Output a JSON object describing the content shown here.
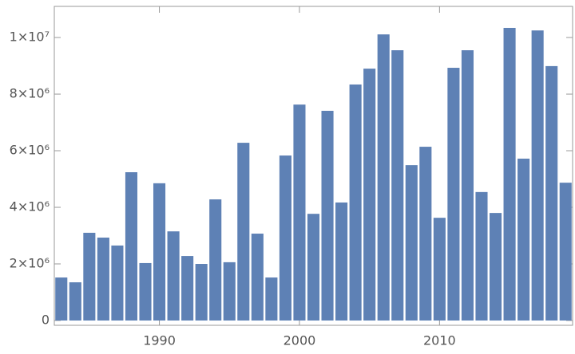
{
  "chart_data": {
    "type": "bar",
    "color": "#5e81b5",
    "x": [
      1983,
      1984,
      1985,
      1986,
      1987,
      1988,
      1989,
      1990,
      1991,
      1992,
      1993,
      1994,
      1995,
      1996,
      1997,
      1998,
      1999,
      2000,
      2001,
      2002,
      2003,
      2004,
      2005,
      2006,
      2007,
      2008,
      2009,
      2010,
      2011,
      2012,
      2013,
      2014,
      2015,
      2016,
      2017,
      2018,
      2019
    ],
    "values": [
      1520000,
      1350000,
      3100000,
      2930000,
      2650000,
      5240000,
      2030000,
      4850000,
      3150000,
      2280000,
      2000000,
      4280000,
      2060000,
      6280000,
      3070000,
      1520000,
      5830000,
      7630000,
      3770000,
      7410000,
      4170000,
      8340000,
      8900000,
      10110000,
      9550000,
      5490000,
      6140000,
      3630000,
      8930000,
      9550000,
      4540000,
      3800000,
      10340000,
      5720000,
      10250000,
      8990000,
      4870000
    ],
    "xlim": [
      1982.5,
      2019.5
    ],
    "xticks": [
      1990,
      2000,
      2010
    ],
    "ylim": [
      -169000,
      11100000
    ],
    "yticks": [
      0,
      {
        "value": 2000000,
        "label": "2×10⁶"
      },
      {
        "value": 4000000,
        "label": "4×10⁶"
      },
      {
        "value": 6000000,
        "label": "6×10⁶"
      },
      {
        "value": 8000000,
        "label": "8×10⁶"
      },
      {
        "value": 10000000,
        "label": "1×10⁷"
      }
    ]
  }
}
